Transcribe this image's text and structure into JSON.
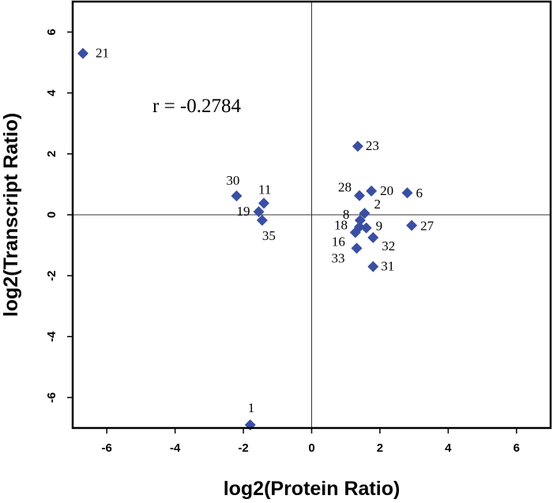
{
  "chart_data": {
    "type": "scatter",
    "xlabel": "log2(Protein Ratio)",
    "ylabel": "log2(Transcript Ratio)",
    "xlim": [
      -7,
      7
    ],
    "ylim": [
      -7,
      7
    ],
    "xticks": [
      -6,
      -4,
      -2,
      0,
      2,
      4,
      6
    ],
    "yticks": [
      -6,
      -4,
      -2,
      0,
      2,
      4,
      6
    ],
    "reference_lines": {
      "x": 0,
      "y": 0
    },
    "grid": false,
    "marker": {
      "shape": "diamond",
      "color": "#3A4FA3"
    },
    "annotation": "r = -0.2784",
    "points": [
      {
        "label": "21",
        "x": -6.7,
        "y": 5.3
      },
      {
        "label": "23",
        "x": 1.35,
        "y": 2.25
      },
      {
        "label": "30",
        "x": -2.2,
        "y": 0.62
      },
      {
        "label": "11",
        "x": -1.4,
        "y": 0.38
      },
      {
        "label": "19",
        "x": -1.55,
        "y": 0.1
      },
      {
        "label": "35",
        "x": -1.45,
        "y": -0.18
      },
      {
        "label": "28",
        "x": 1.4,
        "y": 0.63
      },
      {
        "label": "20",
        "x": 1.75,
        "y": 0.78
      },
      {
        "label": "6",
        "x": 2.8,
        "y": 0.72
      },
      {
        "label": "2",
        "x": 1.55,
        "y": 0.05
      },
      {
        "label": "8",
        "x": 1.42,
        "y": -0.18
      },
      {
        "label": "18",
        "x": 1.4,
        "y": -0.4
      },
      {
        "label": "9",
        "x": 1.6,
        "y": -0.43
      },
      {
        "label": "16",
        "x": 1.28,
        "y": -0.58
      },
      {
        "label": "32",
        "x": 1.8,
        "y": -0.75
      },
      {
        "label": "27",
        "x": 2.93,
        "y": -0.35
      },
      {
        "label": "33",
        "x": 1.32,
        "y": -1.1
      },
      {
        "label": "31",
        "x": 1.8,
        "y": -1.7
      },
      {
        "label": "1",
        "x": -1.8,
        "y": -6.9
      }
    ]
  }
}
